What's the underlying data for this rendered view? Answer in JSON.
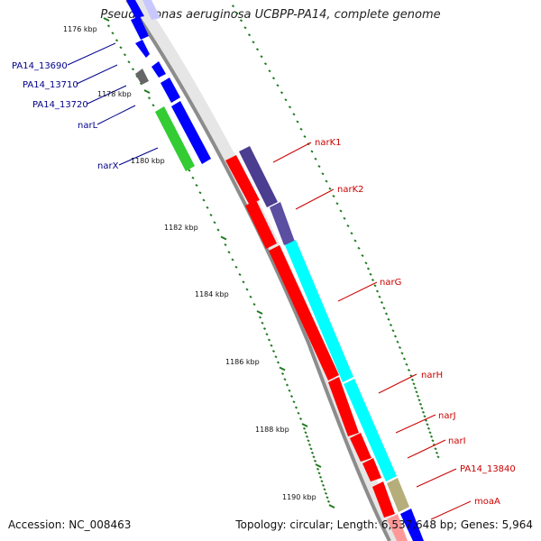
{
  "title": "Pseudomonas aeruginosa UCBPP-PA14, complete genome",
  "footer": {
    "accession_text": "Accession: NC_008463",
    "summary_text": "Topology: circular; Length: 6,537,648 bp; Genes: 5,964"
  },
  "kbp_labels": [
    "1176 kbp",
    "1178 kbp",
    "1180 kbp",
    "1182 kbp",
    "1184 kbp",
    "1186 kbp",
    "1188 kbp",
    "1190 kbp"
  ],
  "gene_labels_left": [
    "PA14_13690",
    "PA14_13710",
    "PA14_13720",
    "narL",
    "narX"
  ],
  "gene_labels_right": [
    "narK1",
    "narK2",
    "narG",
    "narH",
    "narJ",
    "narI",
    "PA14_13840",
    "moaA"
  ],
  "colors": {
    "left_label": "#00008b",
    "right_label": "#cc0000",
    "backbone": "#8c8c8c",
    "blue_gene": "#0000ff",
    "red_gene": "#ff0000",
    "green_gene": "#33cc33",
    "cyan_gene": "#00ffff",
    "purple_gene": "#4b3d8f",
    "khaki_gene": "#b5ae7a",
    "gray_gene": "#777777",
    "tick": "#1f7a1f"
  }
}
